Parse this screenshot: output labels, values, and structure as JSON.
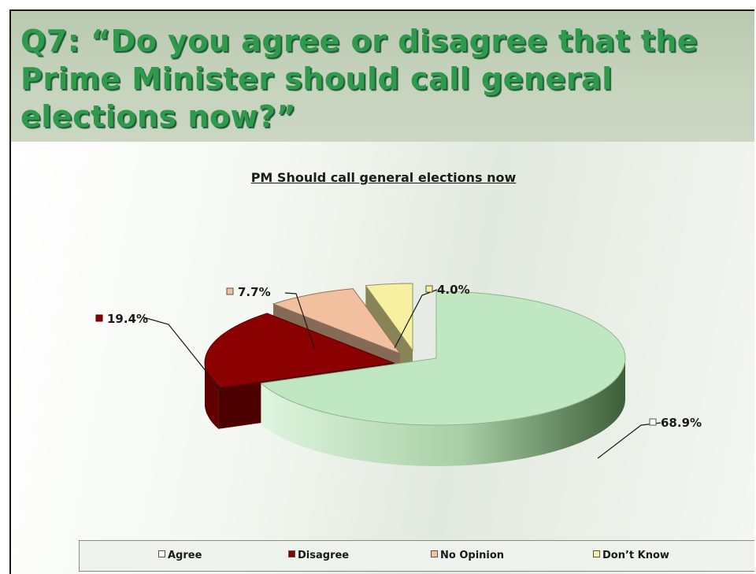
{
  "slide": {
    "title": "Q7: “Do you agree or disagree that the Prime Minister should call general elections now?”"
  },
  "chart_data": {
    "type": "pie",
    "title": "PM Should call general elections now",
    "slices": [
      {
        "name": "Agree",
        "value": 68.9,
        "label": "68.9%",
        "color": "#bfe8c2"
      },
      {
        "name": "Disagree",
        "value": 19.4,
        "label": "19.4%",
        "color": "#8b0000"
      },
      {
        "name": "No Opinion",
        "value": 7.7,
        "label": "7.7%",
        "color": "#f2c09e"
      },
      {
        "name": "Don't Know",
        "value": 4.0,
        "label": "4.0%",
        "color": "#f7f0a0"
      }
    ],
    "legend": {
      "position": "bottom",
      "items": [
        "Agree",
        "Disagree",
        "No Opinion",
        "Don’t Know"
      ]
    }
  },
  "colors": {
    "title_green": "#2f9a4e",
    "title_band": "#c6d3bd"
  }
}
